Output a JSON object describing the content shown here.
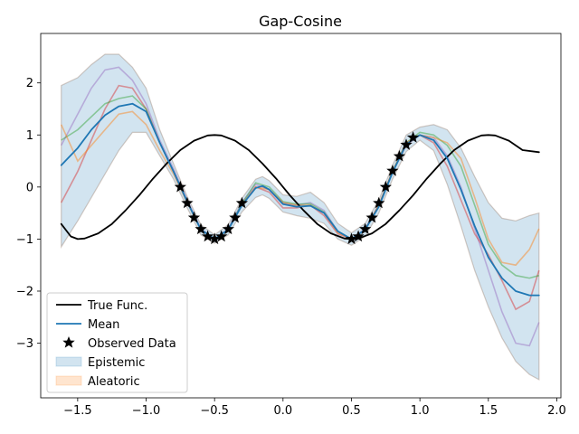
{
  "chart_data": {
    "type": "line",
    "title": "Gap-Cosine",
    "xlabel": "",
    "ylabel": "",
    "xlim": [
      -1.77,
      2.03
    ],
    "ylim": [
      -4.05,
      2.95
    ],
    "xticks": [
      -1.5,
      -1.0,
      -0.5,
      0.0,
      0.5,
      1.0,
      1.5,
      2.0
    ],
    "xtick_labels": [
      "−1.5",
      "−1.0",
      "−0.5",
      "0.0",
      "0.5",
      "1.0",
      "1.5",
      "2.0"
    ],
    "yticks": [
      2,
      1,
      0,
      -1,
      -2,
      -3
    ],
    "ytick_labels": [
      "2",
      "1",
      "0",
      "−1",
      "−2",
      "−3"
    ],
    "legend_position": "lower-left",
    "colors": {
      "true_func": "#000000",
      "mean": "#1f77b4",
      "epistemic": "#1f77b4",
      "aleatoric": "#ff7f0e",
      "sample_purple": "#9467bd",
      "sample_red": "#d62728",
      "sample_green": "#2ca02c",
      "sample_orange": "#ff7f0e"
    },
    "series": [
      {
        "name": "True Func.",
        "x": [
          -1.62,
          -1.55,
          -1.5,
          -1.45,
          -1.35,
          -1.25,
          -1.15,
          -1.05,
          -1.0,
          -0.95,
          -0.85,
          -0.75,
          -0.65,
          -0.55,
          -0.5,
          -0.45,
          -0.35,
          -0.25,
          -0.15,
          -0.05,
          0.0,
          0.05,
          0.15,
          0.25,
          0.35,
          0.45,
          0.5,
          0.55,
          0.65,
          0.75,
          0.85,
          0.95,
          1.0,
          1.05,
          1.15,
          1.25,
          1.35,
          1.45,
          1.5,
          1.55,
          1.65,
          1.75,
          1.87
        ],
        "y": [
          -0.71,
          -0.95,
          -1.0,
          -0.99,
          -0.89,
          -0.71,
          -0.45,
          -0.16,
          0.0,
          0.16,
          0.45,
          0.71,
          0.89,
          0.99,
          1.0,
          0.99,
          0.89,
          0.71,
          0.45,
          0.16,
          0.0,
          -0.16,
          -0.45,
          -0.71,
          -0.89,
          -0.99,
          -1.0,
          -0.99,
          -0.89,
          -0.71,
          -0.45,
          -0.16,
          0.0,
          0.16,
          0.45,
          0.71,
          0.89,
          0.99,
          1.0,
          0.99,
          0.89,
          0.71,
          0.67
        ]
      },
      {
        "name": "Mean",
        "x": [
          -1.62,
          -1.5,
          -1.4,
          -1.3,
          -1.2,
          -1.1,
          -1.0,
          -0.9,
          -0.8,
          -0.7,
          -0.6,
          -0.5,
          -0.4,
          -0.3,
          -0.2,
          -0.15,
          -0.1,
          0.0,
          0.1,
          0.2,
          0.3,
          0.4,
          0.5,
          0.6,
          0.7,
          0.8,
          0.9,
          1.0,
          1.1,
          1.2,
          1.3,
          1.4,
          1.5,
          1.6,
          1.7,
          1.8,
          1.87
        ],
        "y": [
          0.42,
          0.75,
          1.1,
          1.38,
          1.55,
          1.6,
          1.45,
          0.85,
          0.3,
          -0.28,
          -0.82,
          -1.0,
          -0.82,
          -0.35,
          -0.02,
          0.02,
          -0.05,
          -0.33,
          -0.38,
          -0.36,
          -0.5,
          -0.85,
          -1.0,
          -0.82,
          -0.38,
          0.28,
          0.82,
          1.0,
          0.9,
          0.55,
          -0.05,
          -0.75,
          -1.35,
          -1.75,
          -2.0,
          -2.08,
          -2.08
        ]
      }
    ],
    "bands": [
      {
        "name": "Epistemic",
        "x": [
          -1.62,
          -1.5,
          -1.4,
          -1.3,
          -1.2,
          -1.1,
          -1.0,
          -0.9,
          -0.8,
          -0.7,
          -0.6,
          -0.5,
          -0.4,
          -0.3,
          -0.2,
          -0.15,
          -0.1,
          0.0,
          0.1,
          0.2,
          0.3,
          0.4,
          0.5,
          0.6,
          0.7,
          0.8,
          0.9,
          1.0,
          1.1,
          1.2,
          1.3,
          1.4,
          1.5,
          1.6,
          1.7,
          1.8,
          1.87
        ],
        "upper": [
          1.95,
          2.1,
          2.35,
          2.55,
          2.55,
          2.3,
          1.9,
          1.1,
          0.45,
          -0.18,
          -0.72,
          -0.92,
          -0.72,
          -0.22,
          0.15,
          0.2,
          0.12,
          -0.15,
          -0.18,
          -0.1,
          -0.3,
          -0.7,
          -0.88,
          -0.7,
          -0.25,
          0.42,
          1.0,
          1.15,
          1.2,
          1.1,
          0.75,
          0.2,
          -0.3,
          -0.6,
          -0.65,
          -0.55,
          -0.5
        ],
        "lower": [
          -1.15,
          -0.65,
          -0.2,
          0.25,
          0.7,
          1.05,
          1.05,
          0.6,
          0.15,
          -0.4,
          -0.92,
          -1.08,
          -0.92,
          -0.48,
          -0.2,
          -0.15,
          -0.22,
          -0.48,
          -0.55,
          -0.6,
          -0.7,
          -1.0,
          -1.12,
          -0.95,
          -0.5,
          0.15,
          0.68,
          0.9,
          0.7,
          0.05,
          -0.75,
          -1.6,
          -2.3,
          -2.9,
          -3.35,
          -3.6,
          -3.7
        ]
      },
      {
        "name": "Aleatoric",
        "x": [],
        "upper": [],
        "lower": []
      }
    ],
    "samples": [
      {
        "color": "#9467bd",
        "x": [
          -1.62,
          -1.5,
          -1.4,
          -1.3,
          -1.2,
          -1.1,
          -1.0,
          -0.9,
          -0.8,
          -0.7,
          -0.6,
          -0.5,
          -0.4,
          -0.3,
          -0.2,
          -0.1,
          0.0,
          0.1,
          0.2,
          0.3,
          0.4,
          0.5,
          0.6,
          0.7,
          0.8,
          0.9,
          1.0,
          1.1,
          1.2,
          1.3,
          1.4,
          1.5,
          1.6,
          1.7,
          1.8,
          1.87
        ],
        "y": [
          0.8,
          1.4,
          1.9,
          2.25,
          2.3,
          2.05,
          1.6,
          0.9,
          0.35,
          -0.25,
          -0.8,
          -1.0,
          -0.8,
          -0.3,
          0.05,
          -0.05,
          -0.3,
          -0.35,
          -0.3,
          -0.45,
          -0.85,
          -1.0,
          -0.8,
          -0.35,
          0.3,
          0.85,
          1.0,
          0.95,
          0.6,
          0.0,
          -0.8,
          -1.6,
          -2.4,
          -3.0,
          -3.05,
          -2.6
        ]
      },
      {
        "color": "#d62728",
        "x": [
          -1.62,
          -1.5,
          -1.4,
          -1.3,
          -1.2,
          -1.1,
          -1.0,
          -0.9,
          -0.8,
          -0.7,
          -0.6,
          -0.5,
          -0.4,
          -0.3,
          -0.2,
          -0.1,
          0.0,
          0.1,
          0.2,
          0.3,
          0.4,
          0.5,
          0.6,
          0.7,
          0.8,
          0.9,
          1.0,
          1.1,
          1.2,
          1.3,
          1.4,
          1.5,
          1.6,
          1.7,
          1.8,
          1.87
        ],
        "y": [
          -0.3,
          0.3,
          0.9,
          1.5,
          1.95,
          1.9,
          1.5,
          0.85,
          0.3,
          -0.28,
          -0.82,
          -1.0,
          -0.82,
          -0.35,
          0.0,
          -0.1,
          -0.4,
          -0.4,
          -0.35,
          -0.55,
          -0.9,
          -1.0,
          -0.82,
          -0.35,
          0.3,
          0.8,
          1.0,
          0.85,
          0.4,
          -0.25,
          -0.9,
          -1.3,
          -1.8,
          -2.35,
          -2.2,
          -1.6
        ]
      },
      {
        "color": "#2ca02c",
        "x": [
          -1.62,
          -1.5,
          -1.4,
          -1.3,
          -1.2,
          -1.1,
          -1.0,
          -0.9,
          -0.8,
          -0.7,
          -0.6,
          -0.5,
          -0.4,
          -0.3,
          -0.2,
          -0.1,
          0.0,
          0.1,
          0.2,
          0.3,
          0.4,
          0.5,
          0.6,
          0.7,
          0.8,
          0.9,
          1.0,
          1.1,
          1.2,
          1.3,
          1.4,
          1.5,
          1.6,
          1.7,
          1.8,
          1.87
        ],
        "y": [
          0.9,
          1.1,
          1.35,
          1.6,
          1.7,
          1.75,
          1.5,
          0.85,
          0.3,
          -0.28,
          -0.82,
          -1.0,
          -0.82,
          -0.32,
          0.08,
          0.0,
          -0.28,
          -0.33,
          -0.32,
          -0.48,
          -0.85,
          -1.0,
          -0.82,
          -0.36,
          0.3,
          0.85,
          1.05,
          1.0,
          0.8,
          0.4,
          -0.35,
          -1.1,
          -1.5,
          -1.7,
          -1.75,
          -1.7
        ]
      },
      {
        "color": "#ff7f0e",
        "x": [
          -1.62,
          -1.5,
          -1.4,
          -1.3,
          -1.2,
          -1.1,
          -1.0,
          -0.9,
          -0.8,
          -0.7,
          -0.6,
          -0.5,
          -0.4,
          -0.3,
          -0.2,
          -0.1,
          0.0,
          0.1,
          0.2,
          0.3,
          0.4,
          0.5,
          0.6,
          0.7,
          0.8,
          0.9,
          1.0,
          1.1,
          1.2,
          1.3,
          1.4,
          1.5,
          1.6,
          1.7,
          1.8,
          1.87
        ],
        "y": [
          1.2,
          0.5,
          0.8,
          1.1,
          1.4,
          1.45,
          1.2,
          0.7,
          0.25,
          -0.3,
          -0.82,
          -1.0,
          -0.82,
          -0.35,
          0.0,
          -0.05,
          -0.3,
          -0.35,
          -0.35,
          -0.5,
          -0.88,
          -1.0,
          -0.82,
          -0.35,
          0.3,
          0.85,
          1.0,
          0.95,
          0.85,
          0.55,
          -0.2,
          -1.0,
          -1.45,
          -1.5,
          -1.2,
          -0.8
        ]
      }
    ],
    "observed_data": {
      "name": "Observed Data",
      "x": [
        -0.75,
        -0.7,
        -0.65,
        -0.6,
        -0.55,
        -0.5,
        -0.45,
        -0.4,
        -0.35,
        -0.3,
        0.5,
        0.55,
        0.6,
        0.65,
        0.7,
        0.75,
        0.8,
        0.85,
        0.9,
        0.95
      ],
      "y": [
        0.0,
        -0.31,
        -0.59,
        -0.81,
        -0.95,
        -1.0,
        -0.95,
        -0.81,
        -0.59,
        -0.31,
        -1.0,
        -0.95,
        -0.81,
        -0.59,
        -0.31,
        0.0,
        0.31,
        0.59,
        0.81,
        0.95
      ]
    },
    "legend": [
      "True Func.",
      "Mean",
      "Observed Data",
      "Epistemic",
      "Aleatoric"
    ]
  }
}
